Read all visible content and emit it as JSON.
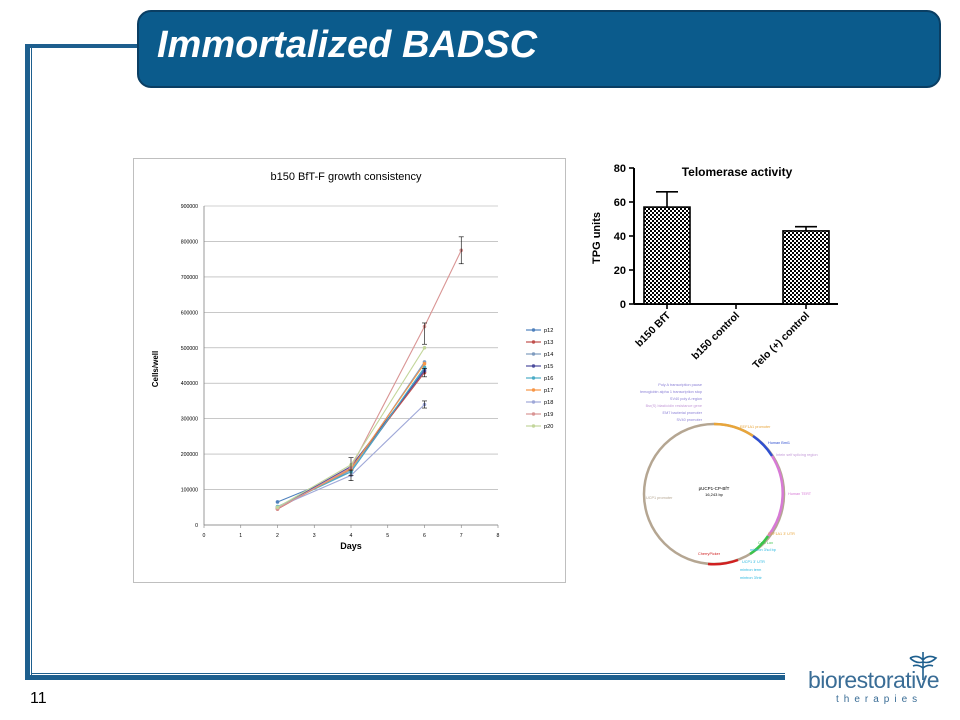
{
  "slide": {
    "title": "Immortalized BADSC",
    "number": "11"
  },
  "growth_chart": {
    "chart_data": {
      "type": "line",
      "title": "b150 BfT-F growth consistency",
      "xlabel": "Days",
      "ylabel": "Cells/well",
      "xlim": [
        0,
        8
      ],
      "ylim": [
        0,
        900000
      ],
      "x_ticks": [
        "0",
        "1",
        "2",
        "3",
        "4",
        "5",
        "6",
        "7",
        "8"
      ],
      "y_ticks": [
        "0",
        "100000",
        "200000",
        "300000",
        "400000",
        "500000",
        "600000",
        "700000",
        "800000",
        "900000"
      ],
      "grid": "horizontal",
      "legend": "right",
      "series": [
        {
          "name": "p12",
          "color": "#4f81bd",
          "x": [
            2,
            4,
            6
          ],
          "y": [
            65000,
            150000,
            440000
          ]
        },
        {
          "name": "p13",
          "color": "#c0504d",
          "x": [
            2,
            4,
            6
          ],
          "y": [
            45000,
            160000,
            430000
          ]
        },
        {
          "name": "p14",
          "color": "#7f9cbf",
          "x": [
            2,
            4,
            6
          ],
          "y": [
            50000,
            155000,
            460000
          ]
        },
        {
          "name": "p15",
          "color": "#4d4d9e",
          "x": [
            2,
            4,
            6
          ],
          "y": [
            48000,
            165000,
            435000
          ]
        },
        {
          "name": "p16",
          "color": "#4bacc6",
          "x": [
            2,
            4,
            6
          ],
          "y": [
            52000,
            150000,
            445000
          ]
        },
        {
          "name": "p17",
          "color": "#f79646",
          "x": [
            2,
            4,
            6
          ],
          "y": [
            47000,
            158000,
            455000
          ]
        },
        {
          "name": "p18",
          "color": "#9fa8d8",
          "x": [
            2,
            4,
            6
          ],
          "y": [
            50000,
            140000,
            340000
          ]
        },
        {
          "name": "p19",
          "color": "#d99594",
          "x": [
            2,
            4,
            6,
            7
          ],
          "y": [
            46000,
            162000,
            560000,
            775000
          ]
        },
        {
          "name": "p20",
          "color": "#c3d69b",
          "x": [
            2,
            4,
            6
          ],
          "y": [
            50000,
            170000,
            500000
          ]
        }
      ]
    }
  },
  "telomerase_chart": {
    "chart_data": {
      "type": "bar",
      "title": "Telomerase activity",
      "ylabel": "TPG units",
      "categories": [
        "b150 BfT",
        "b150 control",
        "Telo (+) control"
      ],
      "values": [
        57,
        0,
        43
      ],
      "errors": [
        9,
        0,
        2.5
      ],
      "ylim": [
        0,
        80
      ],
      "y_ticks": [
        "0",
        "20",
        "40",
        "60",
        "80"
      ]
    }
  },
  "plasmid_map": {
    "name": "pUCP1-CP-BfT",
    "size": "16,243 bp",
    "labels": [
      "Poly A transcription pause",
      "Hemoglobin alpha 1 transcription stop",
      "SV40 poly A region",
      "Bsr(S) blasticidin resistance gene",
      "EM7 bacterial promoter",
      "SV40 promoter",
      "EEF1A1 promoter",
      "Human Bmi1",
      "Intein self splicing region",
      "Human TERT",
      "EEF1A1 3' UTR",
      "CpG Lox",
      "mintron 3'sd bp",
      "UCP1 3' UTR",
      "mintron term",
      "mintron 3'intr",
      "CherryPicker",
      "UCP1 promoter"
    ]
  },
  "logo": {
    "line1": "biorestorative",
    "line2": "therapies"
  },
  "colors": {
    "brand_blue": "#0b5b8c",
    "frame_blue": "#1e5f8e"
  }
}
